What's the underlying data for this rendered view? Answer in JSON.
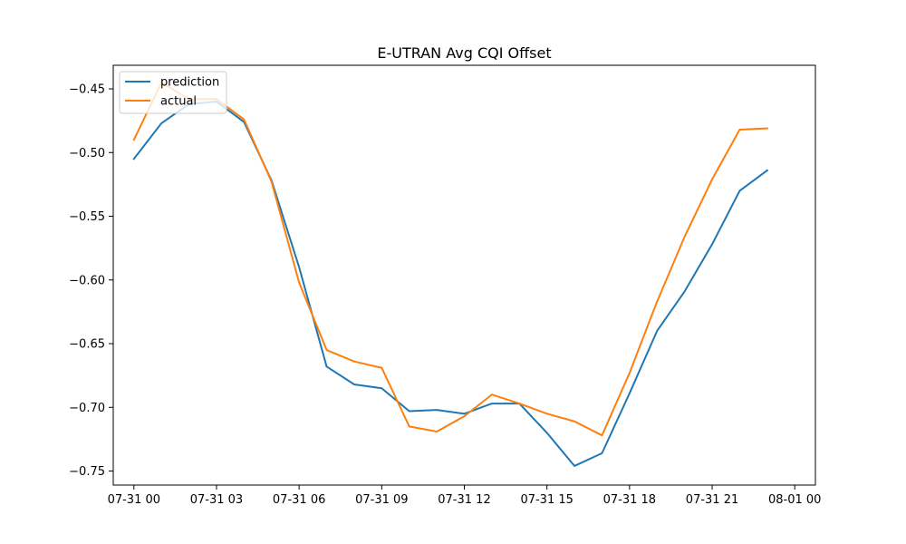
{
  "chart_data": {
    "type": "line",
    "title": "E-UTRAN Avg CQI Offset",
    "xlabel": "",
    "ylabel": "",
    "x": [
      "07-31 00:00",
      "07-31 01:00",
      "07-31 02:00",
      "07-31 03:00",
      "07-31 04:00",
      "07-31 05:00",
      "07-31 06:00",
      "07-31 07:00",
      "07-31 08:00",
      "07-31 09:00",
      "07-31 10:00",
      "07-31 11:00",
      "07-31 12:00",
      "07-31 13:00",
      "07-31 14:00",
      "07-31 15:00",
      "07-31 16:00",
      "07-31 17:00",
      "07-31 18:00",
      "07-31 19:00",
      "07-31 20:00",
      "07-31 21:00",
      "07-31 22:00",
      "07-31 23:00"
    ],
    "xlim": [
      "07-30 23:15",
      "08-01 00:45"
    ],
    "ylim": [
      -0.761,
      -0.4315
    ],
    "xticks": [
      {
        "t": "07-31 00:00",
        "label": "07-31 00"
      },
      {
        "t": "07-31 03:00",
        "label": "07-31 03"
      },
      {
        "t": "07-31 06:00",
        "label": "07-31 06"
      },
      {
        "t": "07-31 09:00",
        "label": "07-31 09"
      },
      {
        "t": "07-31 12:00",
        "label": "07-31 12"
      },
      {
        "t": "07-31 15:00",
        "label": "07-31 15"
      },
      {
        "t": "07-31 18:00",
        "label": "07-31 18"
      },
      {
        "t": "07-31 21:00",
        "label": "07-31 21"
      },
      {
        "t": "08-01 00:00",
        "label": "08-01 00"
      }
    ],
    "yticks": [
      {
        "v": -0.45,
        "label": "−0.45"
      },
      {
        "v": -0.5,
        "label": "−0.50"
      },
      {
        "v": -0.55,
        "label": "−0.55"
      },
      {
        "v": -0.6,
        "label": "−0.60"
      },
      {
        "v": -0.65,
        "label": "−0.65"
      },
      {
        "v": -0.7,
        "label": "−0.70"
      },
      {
        "v": -0.75,
        "label": "−0.75"
      }
    ],
    "grid": false,
    "legend": "top-left",
    "series": [
      {
        "name": "prediction",
        "color": "#1f77b4",
        "values": [
          -0.505,
          -0.477,
          -0.462,
          -0.46,
          -0.476,
          -0.522,
          -0.59,
          -0.668,
          -0.682,
          -0.685,
          -0.703,
          -0.702,
          -0.705,
          -0.697,
          -0.697,
          -0.72,
          -0.746,
          -0.736,
          -0.689,
          -0.64,
          -0.609,
          -0.572,
          -0.53,
          -0.514
        ]
      },
      {
        "name": "actual",
        "color": "#ff7f0e",
        "values": [
          -0.49,
          -0.445,
          -0.458,
          -0.458,
          -0.474,
          -0.523,
          -0.602,
          -0.655,
          -0.664,
          -0.669,
          -0.715,
          -0.719,
          -0.707,
          -0.69,
          -0.697,
          -0.705,
          -0.711,
          -0.722,
          -0.673,
          -0.617,
          -0.566,
          -0.521,
          -0.482,
          -0.481
        ]
      }
    ]
  }
}
